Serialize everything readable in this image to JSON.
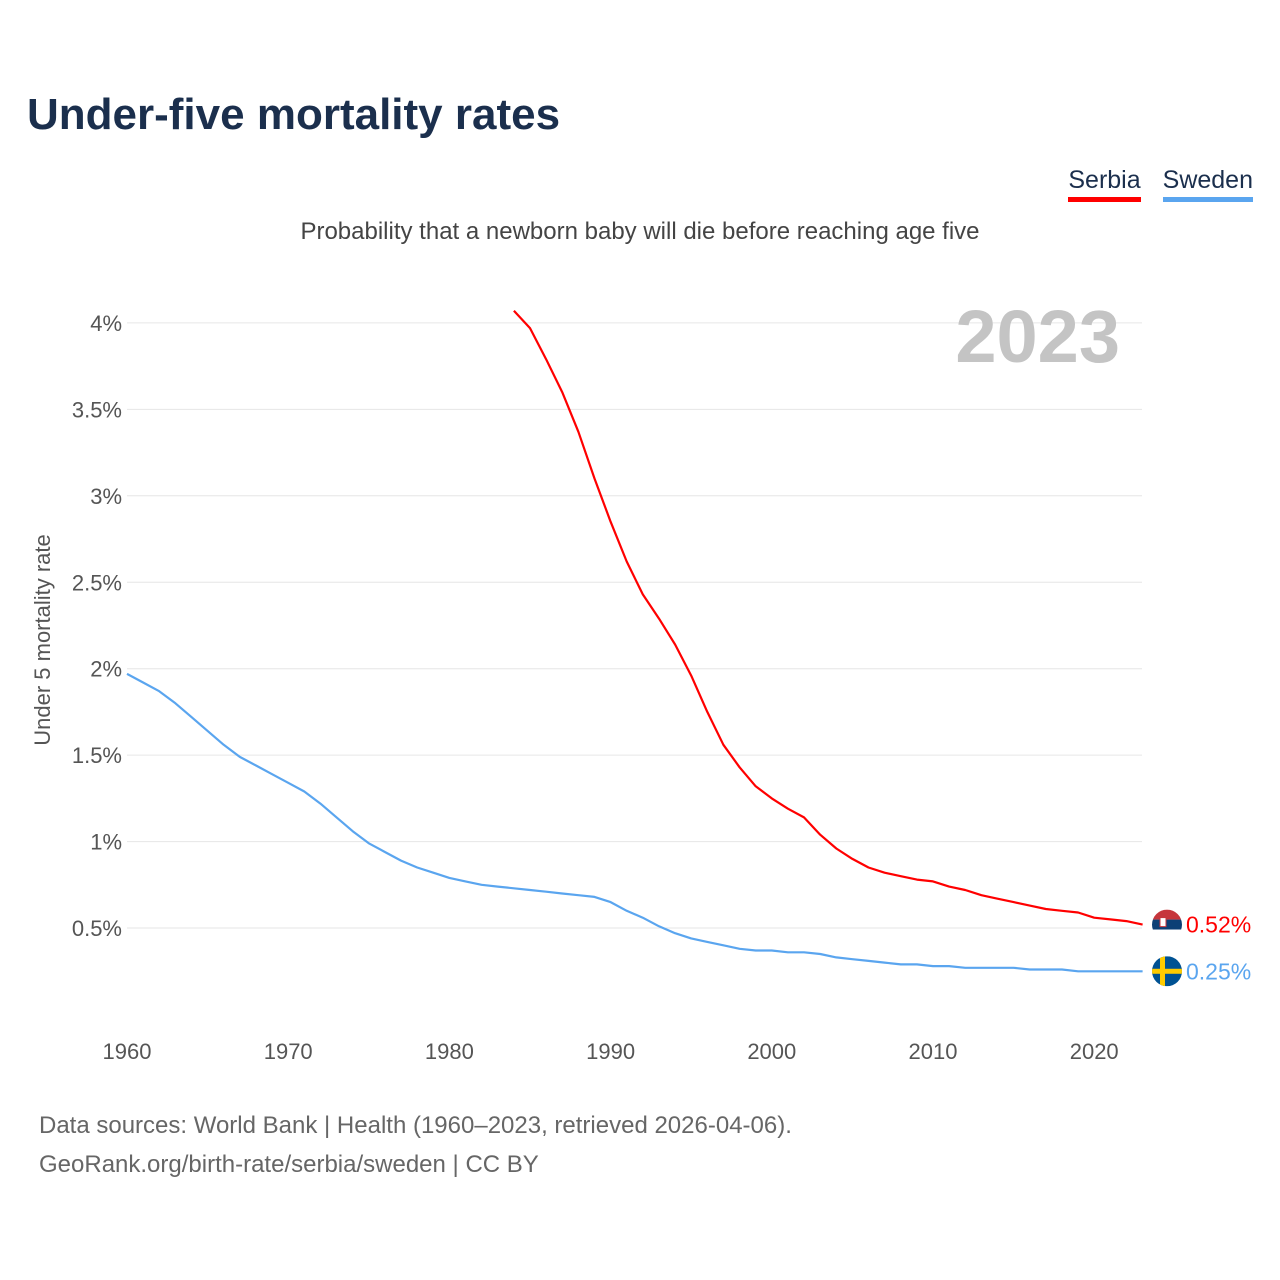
{
  "title": "Under-five mortality rates",
  "subtitle": "Probability that a newborn baby will die before reaching age five",
  "footer": {
    "line1": "Data sources: World Bank | Health (1960–2023, retrieved 2026-04-06).",
    "line2": "GeoRank.org/birth-rate/serbia/sweden | CC BY"
  },
  "chart_data": {
    "type": "line",
    "title": "Under-five mortality rates",
    "ylabel": "Under 5 mortality rate",
    "xlabel": "",
    "year_label": "2023",
    "xlim": [
      1960,
      2023
    ],
    "ylim": [
      0,
      4.2
    ],
    "x_ticks": [
      "1960",
      "1970",
      "1980",
      "1990",
      "2000",
      "2010",
      "2020"
    ],
    "y_ticks": [
      {
        "v": 0.5,
        "label": "0.5%"
      },
      {
        "v": 1,
        "label": "1%"
      },
      {
        "v": 1.5,
        "label": "1.5%"
      },
      {
        "v": 2,
        "label": "2%"
      },
      {
        "v": 2.5,
        "label": "2.5%"
      },
      {
        "v": 3,
        "label": "3%"
      },
      {
        "v": 3.5,
        "label": "3.5%"
      },
      {
        "v": 4,
        "label": "4%"
      }
    ],
    "grid": true,
    "legend_position": "top-right",
    "series": [
      {
        "name": "Serbia",
        "color": "#ff0000",
        "end_label": "0.52%",
        "x_start": 1984,
        "values": [
          4.07,
          3.97,
          3.79,
          3.6,
          3.37,
          3.1,
          2.85,
          2.62,
          2.43,
          2.29,
          2.14,
          1.96,
          1.75,
          1.56,
          1.43,
          1.32,
          1.25,
          1.19,
          1.14,
          1.04,
          0.96,
          0.9,
          0.85,
          0.82,
          0.8,
          0.78,
          0.77,
          0.74,
          0.72,
          0.69,
          0.67,
          0.65,
          0.63,
          0.61,
          0.6,
          0.59,
          0.56,
          0.55,
          0.54,
          0.52
        ]
      },
      {
        "name": "Sweden",
        "color": "#5aa5ef",
        "end_label": "0.25%",
        "x_start": 1960,
        "values": [
          1.97,
          1.92,
          1.87,
          1.8,
          1.72,
          1.64,
          1.56,
          1.49,
          1.44,
          1.39,
          1.34,
          1.29,
          1.22,
          1.14,
          1.06,
          0.99,
          0.94,
          0.89,
          0.85,
          0.82,
          0.79,
          0.77,
          0.75,
          0.74,
          0.73,
          0.72,
          0.71,
          0.7,
          0.69,
          0.68,
          0.65,
          0.6,
          0.56,
          0.51,
          0.47,
          0.44,
          0.42,
          0.4,
          0.38,
          0.37,
          0.37,
          0.36,
          0.36,
          0.35,
          0.33,
          0.32,
          0.31,
          0.3,
          0.29,
          0.29,
          0.28,
          0.28,
          0.27,
          0.27,
          0.27,
          0.27,
          0.26,
          0.26,
          0.26,
          0.25,
          0.25,
          0.25,
          0.25,
          0.25
        ]
      }
    ]
  }
}
